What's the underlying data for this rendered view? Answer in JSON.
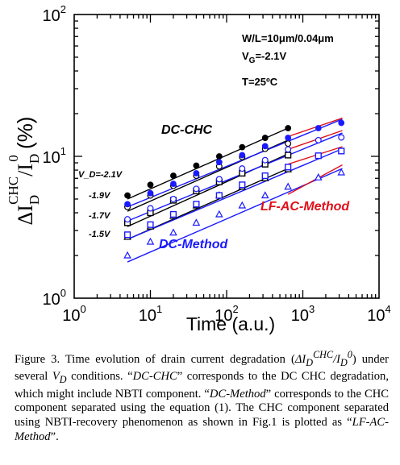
{
  "chart_data": {
    "type": "scatter",
    "xscale": "log",
    "yscale": "log",
    "xlim": [
      1,
      10000
    ],
    "ylim": [
      1,
      100
    ],
    "x_ticks": [
      {
        "base": "10",
        "exp": "0"
      },
      {
        "base": "10",
        "exp": "1"
      },
      {
        "base": "10",
        "exp": "2"
      },
      {
        "base": "10",
        "exp": "3"
      },
      {
        "base": "10",
        "exp": "4"
      }
    ],
    "y_ticks": [
      {
        "base": "10",
        "exp": "0"
      },
      {
        "base": "10",
        "exp": "1"
      },
      {
        "base": "10",
        "exp": "2"
      }
    ],
    "xlabel": "Time (a.u.)",
    "ylabel": {
      "main": "ΔI",
      "sub": "D",
      "sup": "CHC",
      "slash": "/I",
      "sub2": "D",
      "sup2": "0",
      "unit": " (%)"
    },
    "conditions": {
      "line1": "W/L=10μm/0.04μm",
      "line2_prefix": "V",
      "line2_sub": "G",
      "line2_suffix": "=-2.1V",
      "line3": "T=25ºC"
    },
    "vd_labels": [
      "V_D=-2.1V",
      "-1.9V",
      "-1.7V",
      "-1.5V"
    ],
    "group_labels": {
      "dc_chc": "DC-CHC",
      "dc_method": "DC-Method",
      "lf_ac": "LF-AC-Method"
    },
    "colors": {
      "black": "#000000",
      "blue": "#1a1aff",
      "red": "#e0101a"
    },
    "series": [
      {
        "group": "DC-CHC",
        "vd": "-2.1V",
        "marker": "filled-circle",
        "color": "#000000",
        "x": [
          5,
          10,
          20,
          40,
          80,
          160,
          320,
          640
        ],
        "y": [
          5.3,
          6.3,
          7.3,
          8.6,
          10,
          11.6,
          13.5,
          15.8
        ]
      },
      {
        "group": "DC-CHC",
        "vd": "-1.9V",
        "marker": "open-circle",
        "color": "#000000",
        "x": [
          5,
          10,
          20,
          40,
          80,
          160,
          320,
          640
        ],
        "y": [
          4.4,
          5.3,
          6.2,
          7.3,
          8.5,
          9.9,
          11.3,
          12.3
        ]
      },
      {
        "group": "DC-CHC",
        "vd": "-1.7V",
        "marker": "open-square",
        "color": "#000000",
        "x": [
          5,
          10,
          20,
          40,
          80,
          160,
          320,
          640
        ],
        "y": [
          3.4,
          4.0,
          4.9,
          5.7,
          6.6,
          7.6,
          8.8,
          10.2
        ]
      },
      {
        "group": "DC-CHC",
        "vd": "-1.5V",
        "marker": "open-triangle",
        "color": "#000000",
        "x": [
          5,
          10,
          20,
          40,
          80,
          160,
          320,
          640
        ],
        "y": [
          2.7,
          3.2,
          3.8,
          4.5,
          5.3,
          6.1,
          7.0,
          8.1
        ]
      },
      {
        "group": "DC-Method",
        "vd": "-2.1V",
        "marker": "filled-circle",
        "color": "#1a1aff",
        "x": [
          5,
          10,
          20,
          40,
          80,
          160,
          320,
          640,
          1600,
          3200
        ],
        "y": [
          4.6,
          5.5,
          6.4,
          7.6,
          9.1,
          10.2,
          11.8,
          13.5,
          15.8,
          17.2
        ]
      },
      {
        "group": "DC-Method",
        "vd": "-1.9V",
        "marker": "open-circle",
        "color": "#1a1aff",
        "x": [
          5,
          10,
          20,
          40,
          80,
          160,
          320,
          640,
          1600,
          3200
        ],
        "y": [
          3.6,
          4.3,
          5.0,
          5.9,
          6.9,
          8.2,
          9.4,
          11.2,
          13.0,
          13.6
        ]
      },
      {
        "group": "DC-Method",
        "vd": "-1.7V",
        "marker": "open-square",
        "color": "#1a1aff",
        "x": [
          5,
          10,
          20,
          40,
          80,
          160,
          320,
          640,
          1600,
          3200
        ],
        "y": [
          2.8,
          3.3,
          3.9,
          4.6,
          5.3,
          6.3,
          7.3,
          8.4,
          10.1,
          10.9
        ]
      },
      {
        "group": "DC-Method",
        "vd": "-1.5V",
        "marker": "open-triangle",
        "color": "#1a1aff",
        "x": [
          5,
          10,
          20,
          40,
          80,
          160,
          320,
          640,
          1600,
          3200
        ],
        "y": [
          2.0,
          2.5,
          2.9,
          3.4,
          3.9,
          4.5,
          5.3,
          6.1,
          7.1,
          7.7
        ]
      }
    ],
    "fit_lines": [
      {
        "color": "#000000",
        "x": [
          5,
          640
        ],
        "y": [
          5.0,
          15.8
        ]
      },
      {
        "color": "#000000",
        "x": [
          5,
          640
        ],
        "y": [
          4.1,
          13.0
        ]
      },
      {
        "color": "#000000",
        "x": [
          5,
          640
        ],
        "y": [
          3.2,
          10.4
        ]
      },
      {
        "color": "#000000",
        "x": [
          5,
          640
        ],
        "y": [
          2.6,
          8.2
        ]
      },
      {
        "color": "#1a1aff",
        "x": [
          5,
          3300
        ],
        "y": [
          4.4,
          18.3
        ]
      },
      {
        "color": "#1a1aff",
        "x": [
          5,
          3300
        ],
        "y": [
          3.5,
          14.6
        ]
      },
      {
        "color": "#1a1aff",
        "x": [
          5,
          3300
        ],
        "y": [
          2.6,
          11.3
        ]
      },
      {
        "color": "#1a1aff",
        "x": [
          5,
          3300
        ],
        "y": [
          1.8,
          8.2
        ]
      },
      {
        "color": "#e0101a",
        "x": [
          640,
          3300
        ],
        "y": [
          13.8,
          18.6
        ]
      },
      {
        "color": "#e0101a",
        "x": [
          640,
          3300
        ],
        "y": [
          11.2,
          15.2
        ]
      },
      {
        "color": "#e0101a",
        "x": [
          640,
          3300
        ],
        "y": [
          8.8,
          11.7
        ]
      },
      {
        "color": "#e0101a",
        "x": [
          640,
          3300
        ],
        "y": [
          5.4,
          8.7
        ]
      }
    ]
  },
  "caption": {
    "fig": "Figure 3. Time evolution of drain current degradation (",
    "delta_i": "ΔI",
    "sub_d": "D",
    "sup_chc": "CHC",
    "slash_i": "/I",
    "sub_d2": "D",
    "sup_0": "0",
    "part2": ") under several ",
    "v": "V",
    "sub_vd": "D",
    "part3": " conditions. “",
    "dc_chc": "DC-CHC",
    "part4": "” corresponds to the DC CHC degradation, which might include NBTI component. “",
    "dc_method": "DC-Method",
    "part5": "” corresponds to the CHC component separated using the equation (1). The CHC component separated using NBTI-recovery phenomenon as shown in Fig.1 is plotted as “",
    "lf_ac": "LF-AC-Method",
    "part6": "”."
  }
}
